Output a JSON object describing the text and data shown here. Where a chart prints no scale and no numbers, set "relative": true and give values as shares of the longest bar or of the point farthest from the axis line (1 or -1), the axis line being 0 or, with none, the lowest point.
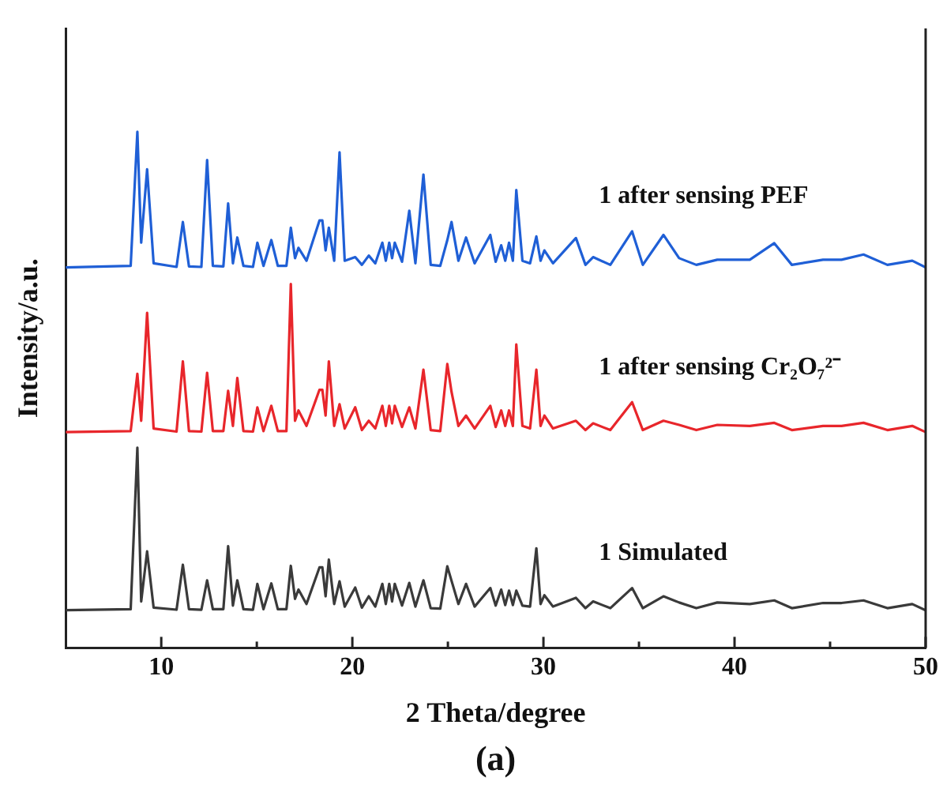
{
  "chart_data": {
    "type": "line",
    "relative": true,
    "xlabel": "2 Theta/degree",
    "ylabel": "Intensity/a.u.",
    "xlim": [
      5,
      50
    ],
    "xticks": [
      10,
      {
        "value": 15,
        "label": null
      },
      20,
      {
        "value": 25,
        "label": null
      },
      30,
      {
        "value": 35,
        "label": null
      },
      40,
      {
        "value": 45,
        "label": null
      },
      50
    ],
    "tick_labels": "x",
    "marker": "none",
    "line_style": "solid",
    "annotations": [
      "(a)"
    ],
    "x": [
      5,
      8.4,
      8.75,
      8.95,
      9.26,
      9.6,
      10.8,
      11.13,
      11.45,
      12.1,
      12.4,
      12.7,
      13.25,
      13.5,
      13.75,
      13.98,
      14.3,
      14.8,
      15.03,
      15.35,
      15.76,
      16.1,
      16.55,
      16.78,
      17.0,
      17.18,
      17.6,
      18.28,
      18.43,
      18.6,
      18.77,
      19.05,
      19.33,
      19.6,
      20.15,
      20.5,
      20.86,
      21.2,
      21.57,
      21.75,
      21.93,
      22.08,
      22.22,
      22.6,
      22.98,
      23.3,
      23.72,
      24.1,
      24.6,
      24.97,
      25.19,
      25.55,
      25.95,
      26.4,
      27.22,
      27.5,
      27.79,
      28.0,
      28.2,
      28.4,
      28.58,
      28.9,
      29.3,
      29.63,
      29.85,
      30.05,
      30.5,
      31.7,
      32.2,
      32.6,
      33.5,
      34.64,
      35.2,
      36.28,
      37.1,
      38,
      39.1,
      40.8,
      42.08,
      43,
      44.63,
      45.6,
      46.75,
      48,
      49.3,
      50
    ],
    "series": [
      {
        "name": "1 after sensing PEF",
        "color": "#1f5fd6",
        "values": [
          0.737,
          0.74,
          1.0,
          0.785,
          0.927,
          0.745,
          0.738,
          0.825,
          0.739,
          0.738,
          0.945,
          0.74,
          0.739,
          0.861,
          0.745,
          0.795,
          0.74,
          0.738,
          0.785,
          0.74,
          0.79,
          0.74,
          0.74,
          0.814,
          0.755,
          0.775,
          0.75,
          0.828,
          0.828,
          0.77,
          0.814,
          0.75,
          0.96,
          0.75,
          0.757,
          0.742,
          0.76,
          0.745,
          0.785,
          0.75,
          0.785,
          0.755,
          0.785,
          0.748,
          0.847,
          0.745,
          0.917,
          0.742,
          0.74,
          0.79,
          0.825,
          0.75,
          0.795,
          0.745,
          0.8,
          0.748,
          0.78,
          0.75,
          0.785,
          0.75,
          0.887,
          0.75,
          0.745,
          0.797,
          0.75,
          0.77,
          0.745,
          0.794,
          0.742,
          0.757,
          0.742,
          0.807,
          0.742,
          0.8,
          0.755,
          0.742,
          0.752,
          0.752,
          0.784,
          0.742,
          0.752,
          0.752,
          0.762,
          0.742,
          0.75,
          0.737
        ]
      },
      {
        "name": "1 after sensing Cr₂O₇²⁻",
        "color": "#e8262b",
        "values": [
          0.418,
          0.42,
          0.531,
          0.44,
          0.649,
          0.425,
          0.419,
          0.555,
          0.42,
          0.419,
          0.533,
          0.42,
          0.42,
          0.498,
          0.43,
          0.523,
          0.42,
          0.419,
          0.466,
          0.42,
          0.469,
          0.42,
          0.42,
          0.705,
          0.44,
          0.46,
          0.43,
          0.5,
          0.5,
          0.45,
          0.555,
          0.43,
          0.472,
          0.425,
          0.466,
          0.422,
          0.44,
          0.425,
          0.469,
          0.43,
          0.469,
          0.435,
          0.469,
          0.428,
          0.466,
          0.425,
          0.539,
          0.422,
          0.42,
          0.55,
          0.496,
          0.43,
          0.45,
          0.425,
          0.469,
          0.428,
          0.46,
          0.43,
          0.46,
          0.43,
          0.588,
          0.43,
          0.425,
          0.539,
          0.43,
          0.45,
          0.425,
          0.44,
          0.422,
          0.435,
          0.422,
          0.476,
          0.422,
          0.44,
          0.432,
          0.422,
          0.432,
          0.43,
          0.436,
          0.422,
          0.43,
          0.43,
          0.436,
          0.422,
          0.43,
          0.418
        ]
      },
      {
        "name": "1 Simulated",
        "color": "#3a3a3a",
        "values": [
          0.073,
          0.075,
          0.388,
          0.09,
          0.187,
          0.078,
          0.074,
          0.161,
          0.075,
          0.074,
          0.131,
          0.075,
          0.075,
          0.197,
          0.082,
          0.131,
          0.075,
          0.074,
          0.124,
          0.075,
          0.125,
          0.075,
          0.075,
          0.159,
          0.095,
          0.113,
          0.085,
          0.156,
          0.156,
          0.1,
          0.171,
          0.085,
          0.129,
          0.08,
          0.117,
          0.078,
          0.1,
          0.08,
          0.124,
          0.085,
          0.124,
          0.09,
          0.124,
          0.082,
          0.126,
          0.08,
          0.131,
          0.077,
          0.076,
          0.158,
          0.13,
          0.085,
          0.124,
          0.08,
          0.116,
          0.082,
          0.113,
          0.083,
          0.111,
          0.083,
          0.111,
          0.082,
          0.08,
          0.193,
          0.085,
          0.102,
          0.08,
          0.097,
          0.077,
          0.09,
          0.077,
          0.116,
          0.077,
          0.1,
          0.088,
          0.077,
          0.088,
          0.085,
          0.092,
          0.077,
          0.087,
          0.087,
          0.092,
          0.077,
          0.085,
          0.073
        ]
      }
    ]
  }
}
